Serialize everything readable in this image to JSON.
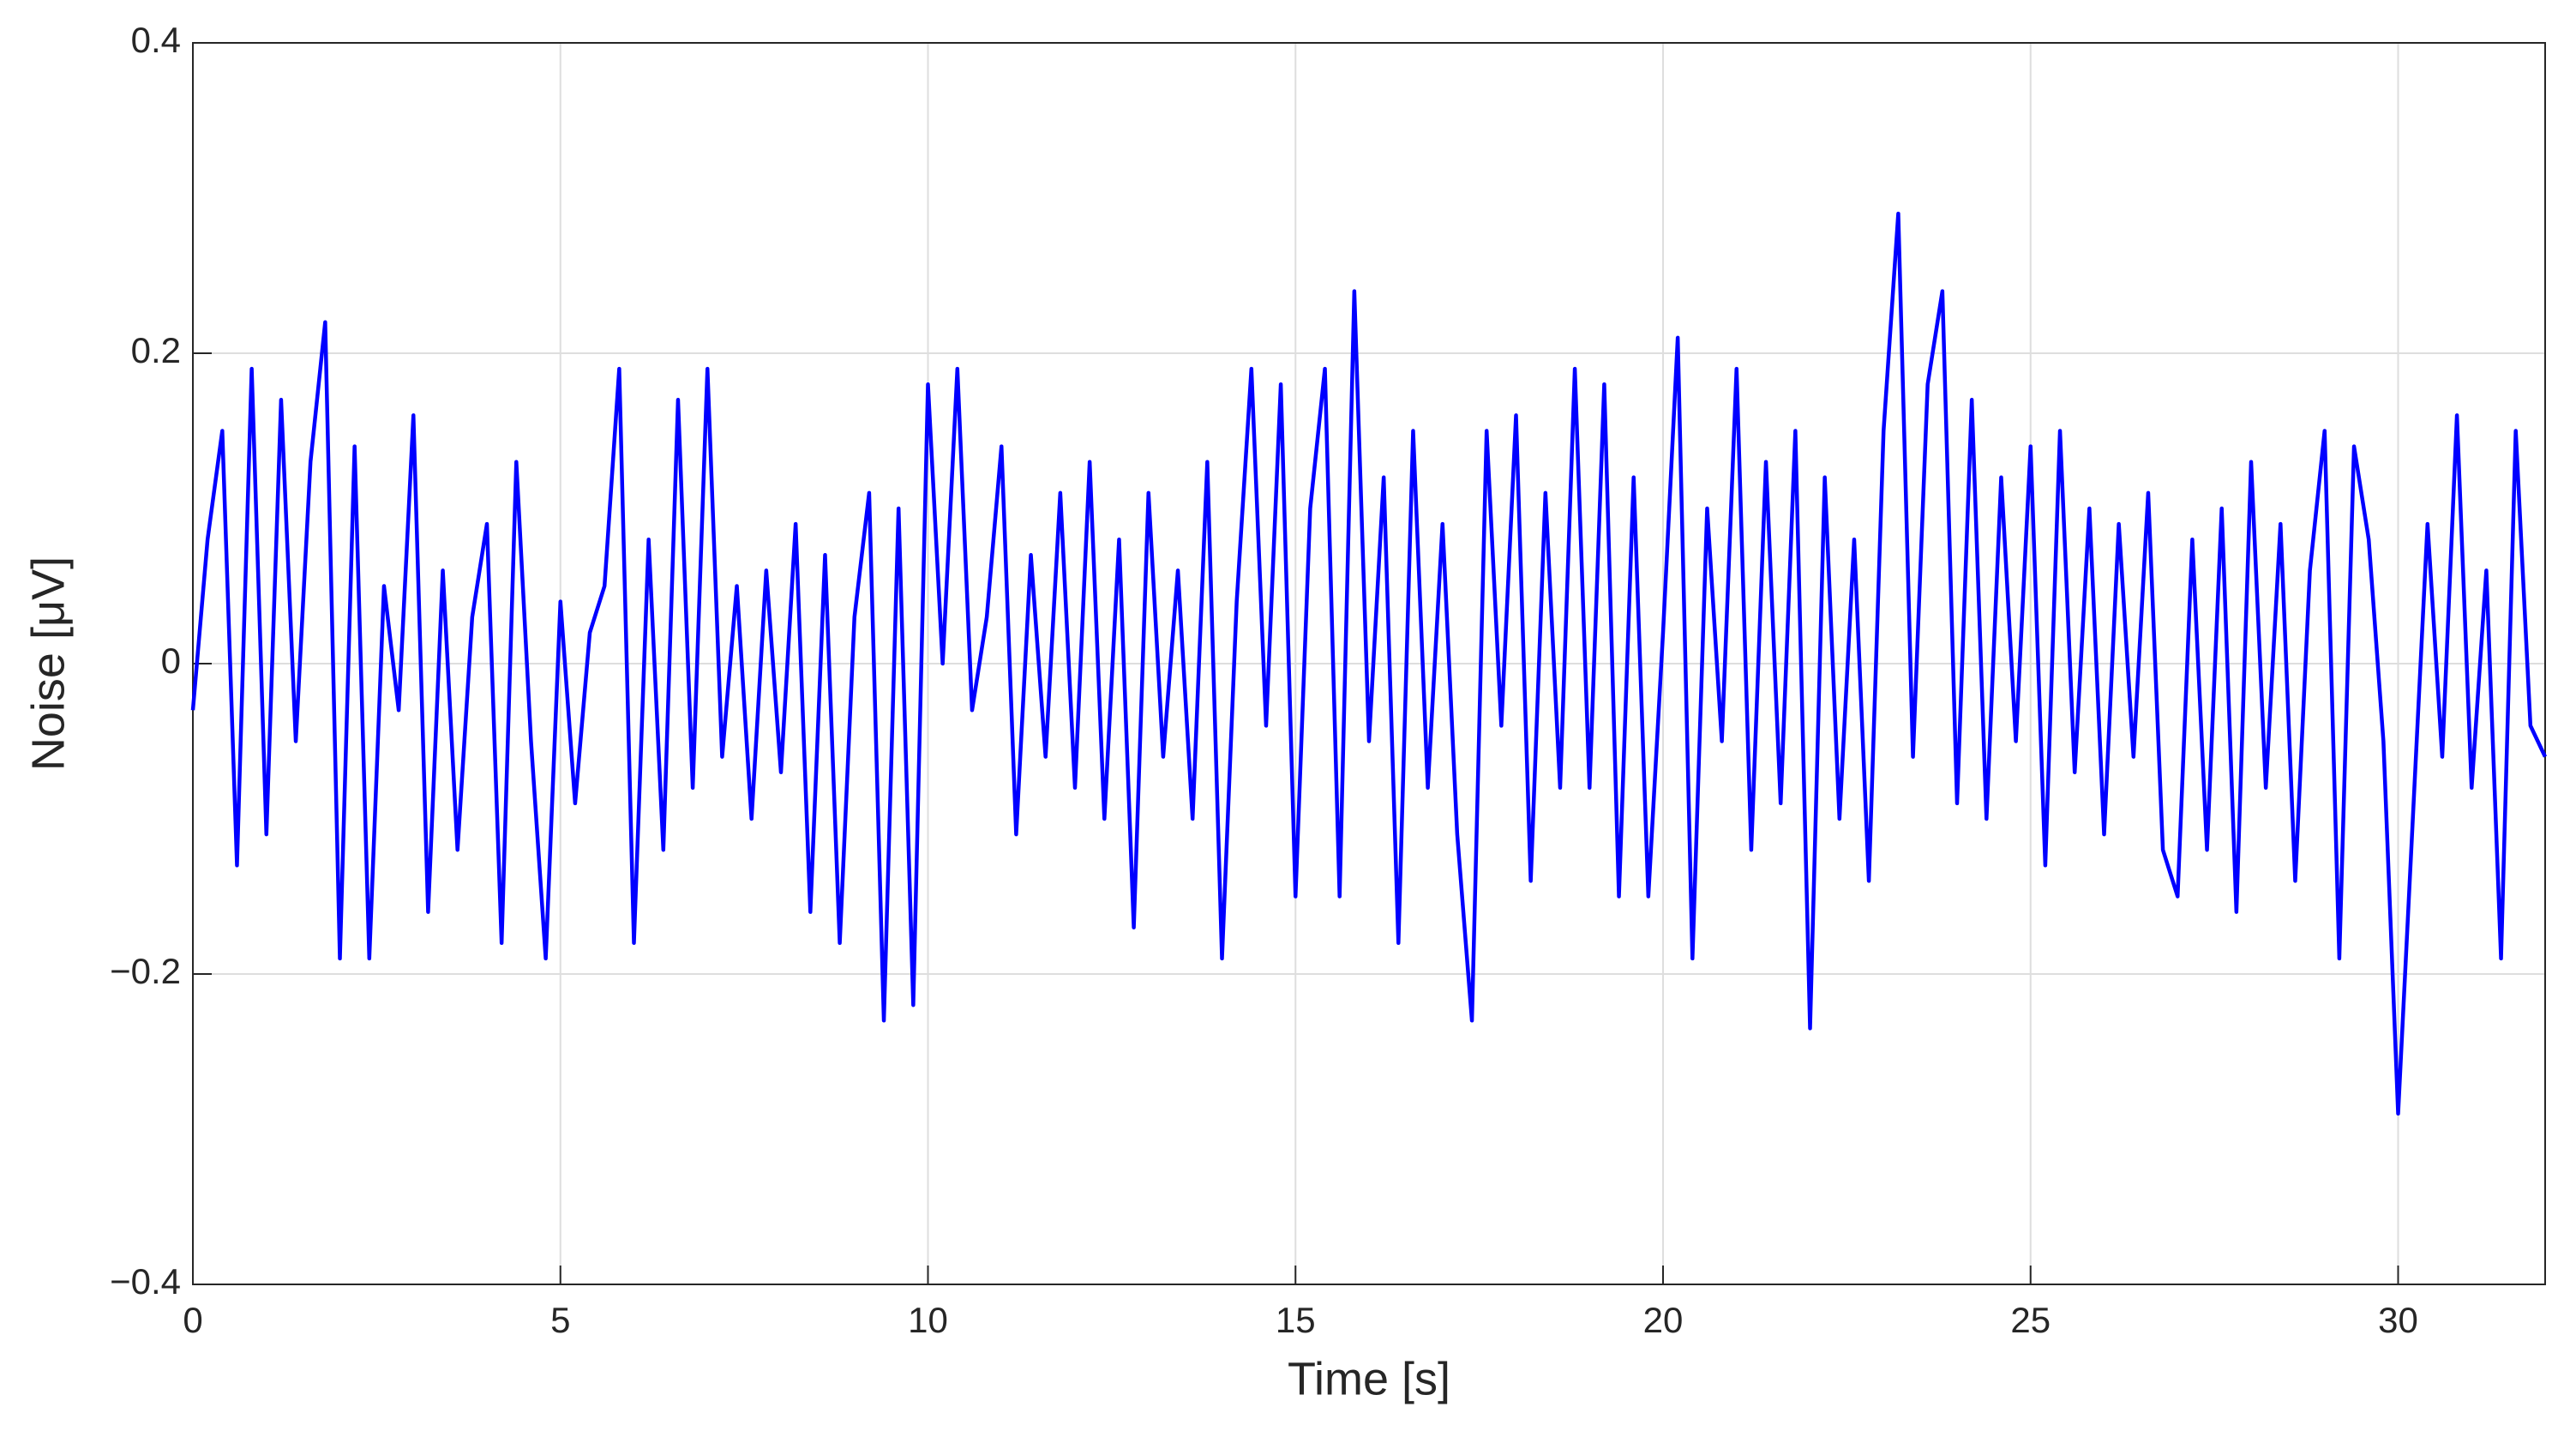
{
  "chart_data": {
    "type": "line",
    "xlabel": "Time [s]",
    "ylabel": "Noise [μV]",
    "xlim": [
      0,
      32
    ],
    "ylim": [
      -0.4,
      0.4
    ],
    "xticks": [
      0,
      5,
      10,
      15,
      20,
      25,
      30
    ],
    "yticks": [
      {
        "value": -0.4,
        "label": "−0.4"
      },
      {
        "value": -0.2,
        "label": "−0.2"
      },
      0,
      0.2,
      0.4
    ],
    "grid": true,
    "x": [
      0,
      0.2,
      0.4,
      0.6,
      0.8,
      1,
      1.2,
      1.4,
      1.6,
      1.8,
      2,
      2.2,
      2.4,
      2.6,
      2.8,
      3,
      3.2,
      3.4,
      3.6,
      3.8,
      4,
      4.2,
      4.4,
      4.6,
      4.8,
      5,
      5.2,
      5.4,
      5.6,
      5.8,
      6,
      6.2,
      6.4,
      6.6,
      6.8,
      7,
      7.2,
      7.4,
      7.6,
      7.8,
      8,
      8.2,
      8.4,
      8.6,
      8.8,
      9,
      9.2,
      9.4,
      9.6,
      9.8,
      10,
      10.2,
      10.4,
      10.6,
      10.8,
      11,
      11.2,
      11.4,
      11.6,
      11.8,
      12,
      12.2,
      12.4,
      12.6,
      12.8,
      13,
      13.2,
      13.4,
      13.6,
      13.8,
      14,
      14.2,
      14.4,
      14.6,
      14.8,
      15,
      15.2,
      15.4,
      15.6,
      15.8,
      16,
      16.2,
      16.4,
      16.6,
      16.8,
      17,
      17.2,
      17.4,
      17.6,
      17.8,
      18,
      18.2,
      18.4,
      18.6,
      18.8,
      19,
      19.2,
      19.4,
      19.6,
      19.8,
      20,
      20.2,
      20.4,
      20.6,
      20.8,
      21,
      21.2,
      21.4,
      21.6,
      21.8,
      22,
      22.2,
      22.4,
      22.6,
      22.8,
      23,
      23.2,
      23.4,
      23.6,
      23.8,
      24,
      24.2,
      24.4,
      24.6,
      24.8,
      25,
      25.2,
      25.4,
      25.6,
      25.8,
      26,
      26.2,
      26.4,
      26.6,
      26.8,
      27,
      27.2,
      27.4,
      27.6,
      27.8,
      28,
      28.2,
      28.4,
      28.6,
      28.8,
      29,
      29.2,
      29.4,
      29.6,
      29.8,
      30,
      30.2,
      30.4,
      30.6,
      30.8,
      31,
      31.2,
      31.4,
      31.6,
      31.8,
      32
    ],
    "series": [
      {
        "name": "Noise",
        "color": "#0000ff",
        "values": [
          -0.03,
          0.08,
          0.15,
          -0.13,
          0.19,
          -0.11,
          0.17,
          -0.05,
          0.13,
          0.22,
          -0.19,
          0.14,
          -0.19,
          0.05,
          -0.03,
          0.16,
          -0.16,
          0.06,
          -0.12,
          0.03,
          0.09,
          -0.18,
          0.13,
          -0.05,
          -0.19,
          0.04,
          -0.09,
          0.02,
          0.05,
          0.19,
          -0.18,
          0.08,
          -0.12,
          0.17,
          -0.08,
          0.19,
          -0.06,
          0.05,
          -0.1,
          0.06,
          -0.07,
          0.09,
          -0.16,
          0.07,
          -0.18,
          0.03,
          0.11,
          -0.23,
          0.1,
          -0.22,
          0.18,
          0,
          0.19,
          -0.03,
          0.03,
          0.14,
          -0.11,
          0.07,
          -0.06,
          0.11,
          -0.08,
          0.13,
          -0.1,
          0.08,
          -0.17,
          0.11,
          -0.06,
          0.06,
          -0.1,
          0.13,
          -0.19,
          0.04,
          0.19,
          -0.04,
          0.18,
          -0.15,
          0.1,
          0.19,
          -0.15,
          0.24,
          -0.05,
          0.12,
          -0.18,
          0.15,
          -0.08,
          0.09,
          -0.11,
          -0.23,
          0.15,
          -0.04,
          0.16,
          -0.14,
          0.11,
          -0.08,
          0.19,
          -0.08,
          0.18,
          -0.15,
          0.12,
          -0.15,
          0.02,
          0.21,
          -0.19,
          0.1,
          -0.05,
          0.19,
          -0.12,
          0.13,
          -0.09,
          0.15,
          -0.235,
          0.12,
          -0.1,
          0.08,
          -0.14,
          0.15,
          0.29,
          -0.06,
          0.18,
          0.24,
          -0.09,
          0.17,
          -0.1,
          0.12,
          -0.05,
          0.14,
          -0.13,
          0.15,
          -0.07,
          0.1,
          -0.11,
          0.09,
          -0.06,
          0.11,
          -0.12,
          -0.15,
          0.08,
          -0.12,
          0.1,
          -0.16,
          0.13,
          -0.08,
          0.09,
          -0.14,
          0.06,
          0.15,
          -0.19,
          0.14,
          0.08,
          -0.05,
          -0.29,
          -0.1,
          0.09,
          -0.06,
          0.16,
          -0.08,
          0.06,
          -0.19,
          0.15,
          -0.04,
          -0.06
        ]
      }
    ]
  }
}
